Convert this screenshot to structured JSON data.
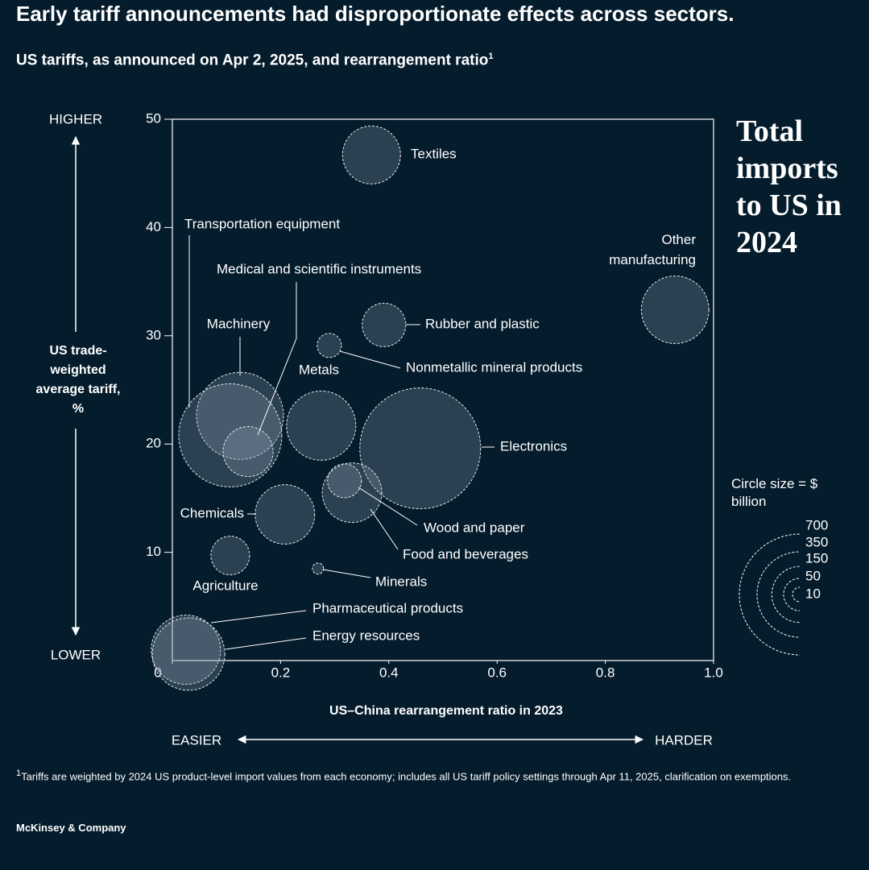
{
  "chart_data": {
    "type": "bubble",
    "title": "Early tariff announcements had disproportionate effects across sectors.",
    "subtitle": "US tariffs, as announced on Apr 2, 2025, and rearrangement ratio",
    "subtitle_footnote_marker": "1",
    "side_title": "Total imports to US in 2024",
    "y_label": "US trade-weighted average tariff, %",
    "y_high": "HIGHER",
    "y_low": "LOWER",
    "x_label": "US–China rearrangement ratio in 2023",
    "x_low": "EASIER",
    "x_high": "HARDER",
    "xlim": [
      0,
      1
    ],
    "xticks": [
      0,
      0.2,
      0.4,
      0.6,
      0.8,
      {
        "value": 1,
        "label": "1.0"
      }
    ],
    "ylim": [
      0,
      50
    ],
    "yticks": [
      10,
      20,
      30,
      40,
      50
    ],
    "color": "#8fa3b5",
    "labels": [
      "Textiles",
      "Other manufacturing",
      "Rubber and plastic",
      "Nonmetallic mineral products",
      "Metals",
      "Machinery",
      "Transportation equipment",
      "Medical and scientific instruments",
      "Electronics",
      "Chemicals",
      "Food and beverages",
      "Wood and paper",
      "Agriculture",
      "Minerals",
      "Pharmaceutical products",
      "Energy resources"
    ],
    "x": [
      0.368,
      0.929,
      0.391,
      0.29,
      0.275,
      0.125,
      0.107,
      0.14,
      0.458,
      0.208,
      0.332,
      0.318,
      0.107,
      0.269,
      0.025,
      0.03
    ],
    "values": [
      46.7,
      32.4,
      31.0,
      29.1,
      21.7,
      22.6,
      20.8,
      19.3,
      19.6,
      13.5,
      15.5,
      16.6,
      9.7,
      8.5,
      1.0,
      0.6
    ],
    "sizes": [
      161,
      219,
      91,
      28,
      230,
      363,
      510,
      120,
      700,
      170,
      170,
      55,
      72,
      6,
      230,
      252
    ],
    "size_legend_title": "Circle size = $ billion",
    "size_legend": [
      700,
      350,
      150,
      50,
      10
    ],
    "footnote_marker": "1",
    "footnote": "Tariffs are weighted by 2024 US product-level import values from each economy; includes all US tariff policy settings through Apr 11, 2025, clarification on exemptions.",
    "source": "McKinsey & Company"
  }
}
